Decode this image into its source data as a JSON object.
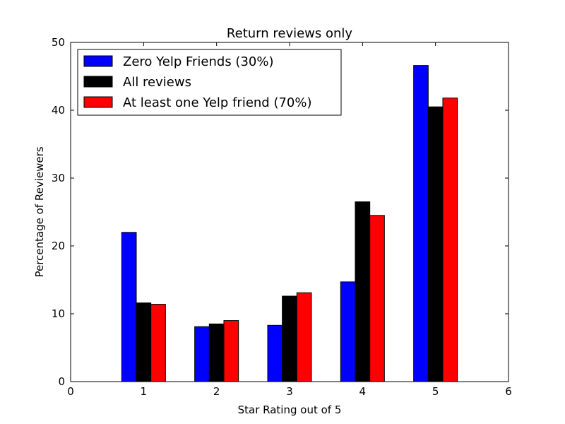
{
  "chart_data": {
    "type": "bar",
    "title": "Return reviews only",
    "xlabel": "Star Rating out of 5",
    "ylabel": "Percentage of Reviewers",
    "xlim": [
      0,
      6
    ],
    "ylim": [
      0,
      50
    ],
    "xticks": [
      "0",
      "1",
      "2",
      "3",
      "4",
      "5",
      "6"
    ],
    "yticks": [
      "0",
      "10",
      "20",
      "30",
      "40",
      "50"
    ],
    "categories": [
      1,
      2,
      3,
      4,
      5
    ],
    "grid": false,
    "legend_position": "top-left",
    "series": [
      {
        "name": "Zero Yelp Friends (30%)",
        "color": "#0000ff",
        "values": [
          22.0,
          8.1,
          8.3,
          14.7,
          46.6
        ]
      },
      {
        "name": "All reviews",
        "color": "#000000",
        "values": [
          11.6,
          8.5,
          12.6,
          26.5,
          40.5
        ]
      },
      {
        "name": "At least one Yelp friend (70%)",
        "color": "#ff0000",
        "values": [
          11.4,
          9.0,
          13.1,
          24.5,
          41.8
        ]
      }
    ]
  }
}
